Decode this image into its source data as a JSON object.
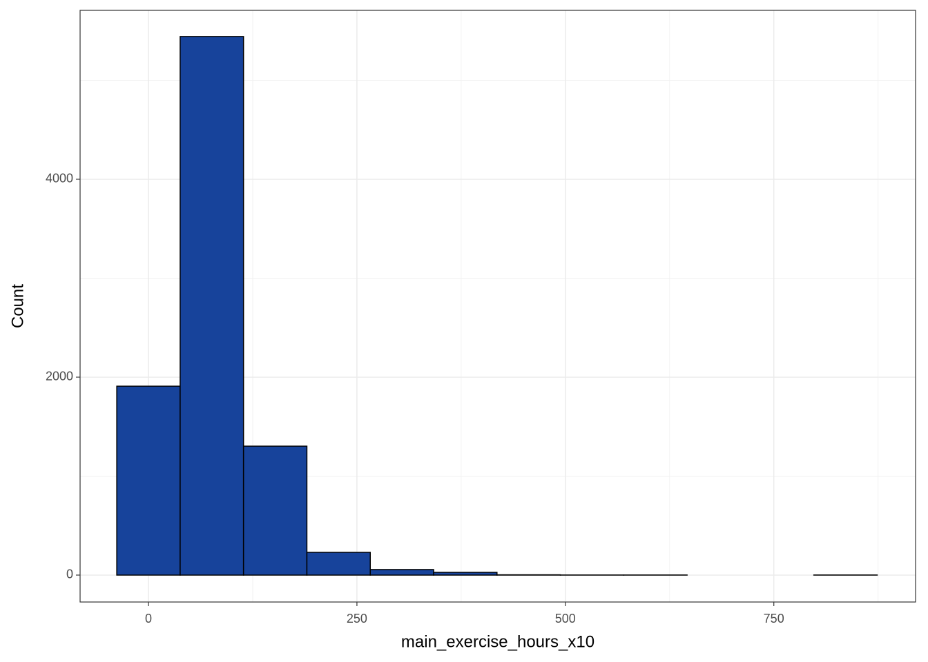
{
  "chart_data": {
    "type": "histogram",
    "x_label": "main_exercise_hours_x10",
    "y_label": "Count",
    "bins": [
      -38,
      38,
      114,
      190,
      266,
      342,
      418,
      494,
      570,
      646,
      722,
      798,
      874
    ],
    "counts": [
      1909,
      5443,
      1303,
      230,
      56,
      28,
      3,
      1,
      1,
      0,
      0,
      1
    ],
    "color": "#17439b",
    "edge_color": "#000000",
    "xlim": [
      -82,
      920
    ],
    "ylim": [
      -272,
      5707
    ],
    "xticks": [
      0,
      250,
      500,
      750
    ],
    "yticks": [
      0,
      2000,
      4000
    ],
    "minor_xticks": [
      125,
      375,
      625,
      875
    ],
    "minor_yticks": [
      1000,
      3000,
      5000
    ],
    "grid": true
  }
}
